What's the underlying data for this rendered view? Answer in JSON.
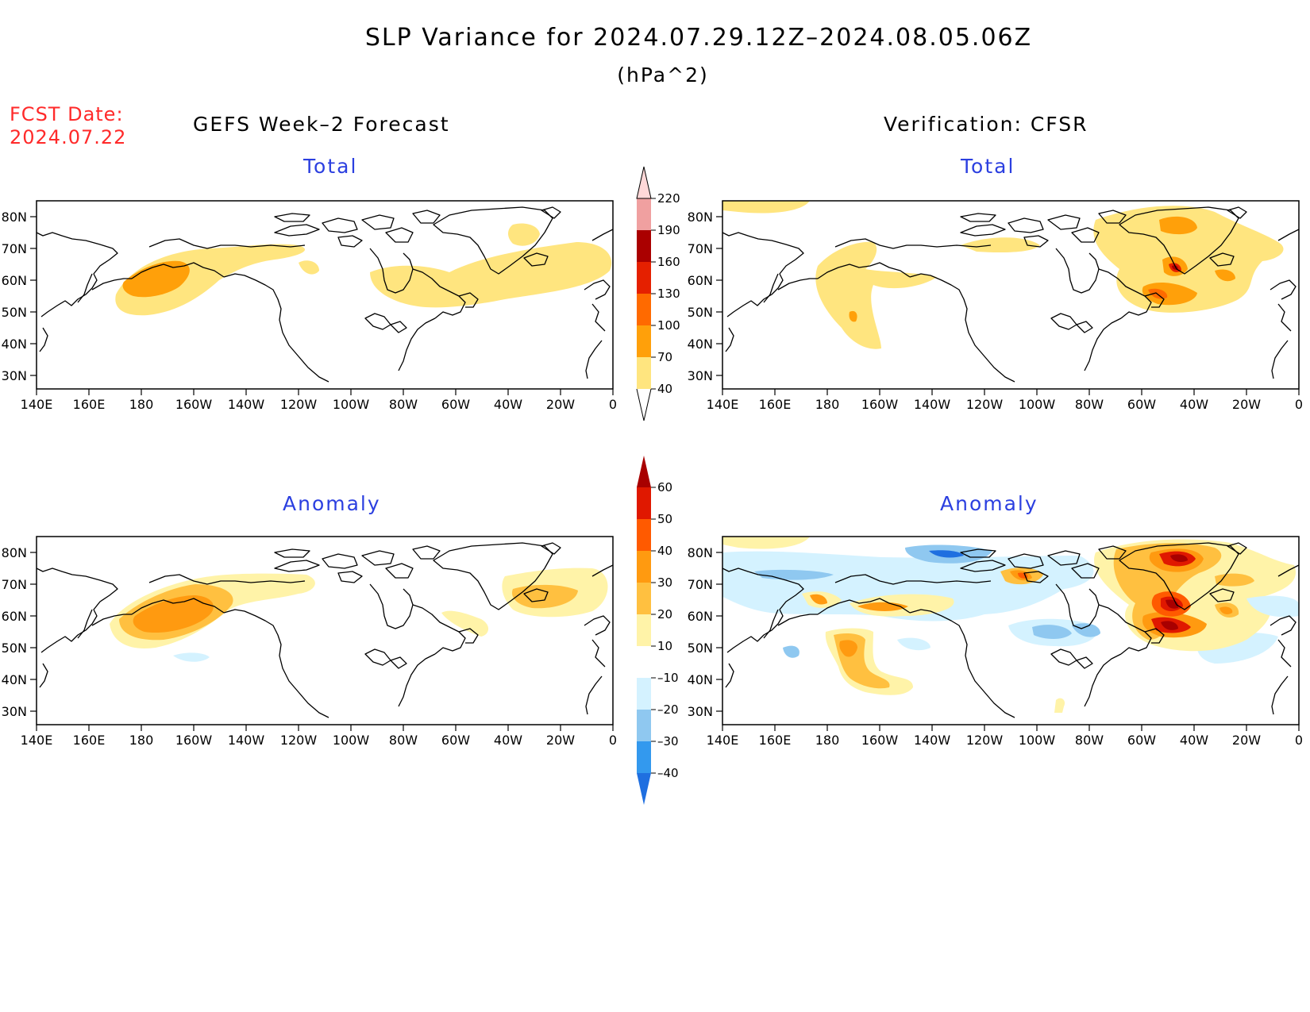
{
  "title": "SLP Variance for 2024.07.29.12Z–2024.08.05.06Z",
  "units": "(hPa^2)",
  "fcst_label": "FCST Date:",
  "fcst_date": "2024.07.22",
  "columns": {
    "left": "GEFS Week–2 Forecast",
    "right": "Verification: CFSR"
  },
  "panels": {
    "total": "Total",
    "anomaly": "Anomaly"
  },
  "axes": {
    "lat_labels": [
      "80N",
      "70N",
      "60N",
      "50N",
      "40N",
      "30N"
    ],
    "lon_labels": [
      "140E",
      "160E",
      "180",
      "160W",
      "140W",
      "120W",
      "100W",
      "80W",
      "60W",
      "40W",
      "20W",
      "0"
    ]
  },
  "colorbars": {
    "total": {
      "levels": [
        "40",
        "70",
        "100",
        "130",
        "160",
        "190",
        "220"
      ],
      "colors": [
        "#ffe57f",
        "#ffa00a",
        "#ff6a00",
        "#e52000",
        "#aa0000",
        "#f0a0a0",
        "#ffd8d8"
      ]
    },
    "anomaly": {
      "levels": [
        "–40",
        "–30",
        "–20",
        "–10",
        "10",
        "20",
        "30",
        "40",
        "50",
        "60"
      ],
      "colors": [
        "#1f6fe0",
        "#3399ee",
        "#8fc8f0",
        "#d4f2ff",
        "#ffffff",
        "#fff3a8",
        "#ffc040",
        "#ff9a10",
        "#ff5a00",
        "#e01800",
        "#a80000"
      ]
    }
  },
  "colors": {
    "fcst_red": "#ff2a2a",
    "panel_title_blue": "#2b3fe0"
  }
}
